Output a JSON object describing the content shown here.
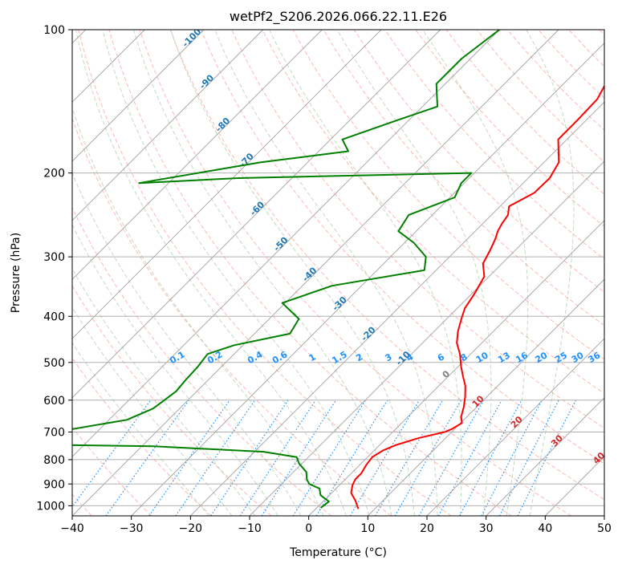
{
  "chart_data": {
    "type": "line",
    "title": "wetPf2_S206.2026.066.22.11.E26",
    "xlabel": "Temperature (°C)",
    "ylabel": "Pressure (hPa)",
    "xlim": [
      -40,
      50
    ],
    "ylim": [
      1050,
      100
    ],
    "y_scale": "log",
    "x_ticks": [
      -40,
      -30,
      -20,
      -10,
      0,
      10,
      20,
      30,
      40,
      50
    ],
    "y_ticks": [
      100,
      200,
      300,
      400,
      500,
      600,
      700,
      800,
      900,
      1000
    ],
    "skew": true,
    "grid": true,
    "series": [
      {
        "color": "#ff0000",
        "x": [
          7.2,
          5.3,
          3.3,
          2.2,
          1.7,
          1.7,
          1.1,
          0.8,
          1.5,
          2.8,
          5.5,
          8.8,
          9.5,
          10.2,
          9.0,
          7.8,
          6.3,
          4.5,
          2.5,
          0.5,
          -1.8,
          -4.2,
          -6.0,
          -7.5,
          -8.7,
          -9.5,
          -10.8,
          -13.2,
          -14.3,
          -15.3,
          -16.2,
          -16.8,
          -17.2,
          -18.5,
          -16.5,
          -16.4,
          -17.5,
          -21.5,
          -21.5,
          -21.7,
          -23.5,
          -22.5,
          -22.3
        ],
        "y": [
          1015,
          975,
          940,
          905,
          880,
          855,
          820,
          790,
          765,
          745,
          720,
          700,
          690,
          670,
          650,
          620,
          590,
          560,
          535,
          510,
          480,
          455,
          430,
          405,
          385,
          360,
          330,
          310,
          290,
          275,
          265,
          255,
          245,
          235,
          220,
          205,
          190,
          170,
          155,
          140,
          125,
          110,
          100
        ]
      },
      {
        "color": "#008000",
        "x": [
          0.7,
          1.0,
          -1.5,
          -2.8,
          -5.3,
          -6.5,
          -7.8,
          -10.5,
          -12.0,
          -18.5,
          -38.0,
          -73.0,
          -62.0,
          -47.0,
          -44.5,
          -44.0,
          -43.5,
          -43.8,
          -44.0,
          -44.5,
          -41.5,
          -34.0,
          -35.0,
          -40.5,
          -35.0,
          -22.0,
          -24.0,
          -28.5,
          -33.0,
          -34.0,
          -29.2,
          -30.5,
          -30.5,
          -69.0,
          -85.0,
          -68.0,
          -55.0,
          -58.0,
          -52.0,
          -47.5,
          -51.5,
          -51.5,
          -50.0
        ],
        "y": [
          1010,
          980,
          950,
          920,
          900,
          880,
          850,
          815,
          790,
          770,
          750,
          740,
          720,
          660,
          625,
          600,
          575,
          545,
          510,
          480,
          460,
          435,
          405,
          375,
          345,
          320,
          300,
          280,
          265,
          245,
          225,
          210,
          200,
          205,
          210,
          190,
          180,
          170,
          155,
          145,
          130,
          115,
          100
        ]
      }
    ]
  },
  "annotations": {
    "dry_adiabat_labels": [
      "-100",
      "-90",
      "-80",
      "-70",
      "-60",
      "-50",
      "-40",
      "-30",
      "-20",
      "-10",
      "0",
      "10",
      "20",
      "30",
      "40"
    ],
    "mixing_ratio_labels": [
      "0.1",
      "0.2",
      "0.4",
      "0.6",
      "1",
      "1.5",
      "2",
      "3",
      "4",
      "6",
      "8",
      "10",
      "13",
      "16",
      "20",
      "25",
      "30",
      "36"
    ]
  },
  "colors": {
    "temperature": "#ff0000",
    "dewpoint": "#008000",
    "dry_adiabat": "#fa8072",
    "moist_adiabat": "#8fbc8f",
    "mixing_ratio": "#1e90ff",
    "isotherm": "#a0a0a0"
  }
}
